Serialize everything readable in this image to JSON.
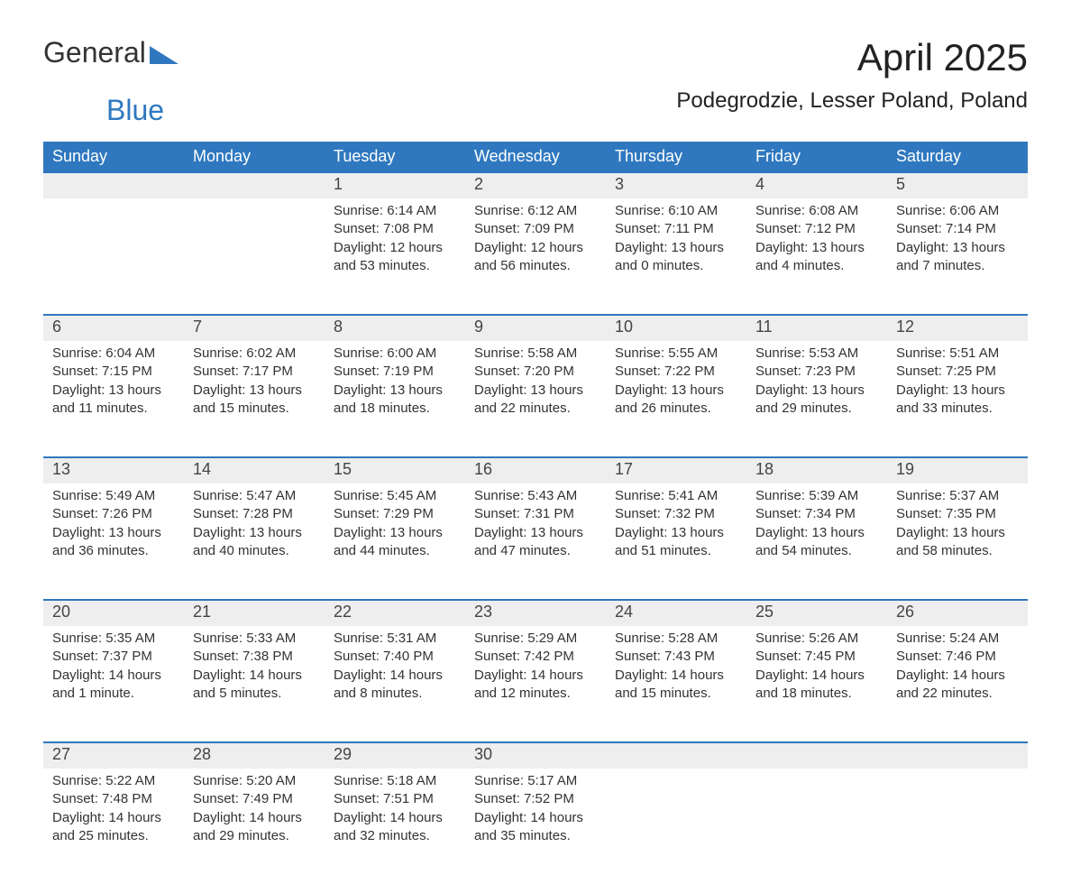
{
  "logo": {
    "part1": "General",
    "part2": "Blue"
  },
  "title": "April 2025",
  "location": "Podegrodzie, Lesser Poland, Poland",
  "weekdays": [
    "Sunday",
    "Monday",
    "Tuesday",
    "Wednesday",
    "Thursday",
    "Friday",
    "Saturday"
  ],
  "colors": {
    "header_bg": "#2f78bf",
    "header_text": "#ffffff",
    "daynum_bg": "#eeeeee",
    "daynum_border": "#2f78bf",
    "body_text": "#333333",
    "page_bg": "#ffffff",
    "logo_accent": "#2f78bf"
  },
  "weeks": [
    [
      null,
      null,
      {
        "day": "1",
        "sunrise": "Sunrise: 6:14 AM",
        "sunset": "Sunset: 7:08 PM",
        "daylight1": "Daylight: 12 hours",
        "daylight2": "and 53 minutes."
      },
      {
        "day": "2",
        "sunrise": "Sunrise: 6:12 AM",
        "sunset": "Sunset: 7:09 PM",
        "daylight1": "Daylight: 12 hours",
        "daylight2": "and 56 minutes."
      },
      {
        "day": "3",
        "sunrise": "Sunrise: 6:10 AM",
        "sunset": "Sunset: 7:11 PM",
        "daylight1": "Daylight: 13 hours",
        "daylight2": "and 0 minutes."
      },
      {
        "day": "4",
        "sunrise": "Sunrise: 6:08 AM",
        "sunset": "Sunset: 7:12 PM",
        "daylight1": "Daylight: 13 hours",
        "daylight2": "and 4 minutes."
      },
      {
        "day": "5",
        "sunrise": "Sunrise: 6:06 AM",
        "sunset": "Sunset: 7:14 PM",
        "daylight1": "Daylight: 13 hours",
        "daylight2": "and 7 minutes."
      }
    ],
    [
      {
        "day": "6",
        "sunrise": "Sunrise: 6:04 AM",
        "sunset": "Sunset: 7:15 PM",
        "daylight1": "Daylight: 13 hours",
        "daylight2": "and 11 minutes."
      },
      {
        "day": "7",
        "sunrise": "Sunrise: 6:02 AM",
        "sunset": "Sunset: 7:17 PM",
        "daylight1": "Daylight: 13 hours",
        "daylight2": "and 15 minutes."
      },
      {
        "day": "8",
        "sunrise": "Sunrise: 6:00 AM",
        "sunset": "Sunset: 7:19 PM",
        "daylight1": "Daylight: 13 hours",
        "daylight2": "and 18 minutes."
      },
      {
        "day": "9",
        "sunrise": "Sunrise: 5:58 AM",
        "sunset": "Sunset: 7:20 PM",
        "daylight1": "Daylight: 13 hours",
        "daylight2": "and 22 minutes."
      },
      {
        "day": "10",
        "sunrise": "Sunrise: 5:55 AM",
        "sunset": "Sunset: 7:22 PM",
        "daylight1": "Daylight: 13 hours",
        "daylight2": "and 26 minutes."
      },
      {
        "day": "11",
        "sunrise": "Sunrise: 5:53 AM",
        "sunset": "Sunset: 7:23 PM",
        "daylight1": "Daylight: 13 hours",
        "daylight2": "and 29 minutes."
      },
      {
        "day": "12",
        "sunrise": "Sunrise: 5:51 AM",
        "sunset": "Sunset: 7:25 PM",
        "daylight1": "Daylight: 13 hours",
        "daylight2": "and 33 minutes."
      }
    ],
    [
      {
        "day": "13",
        "sunrise": "Sunrise: 5:49 AM",
        "sunset": "Sunset: 7:26 PM",
        "daylight1": "Daylight: 13 hours",
        "daylight2": "and 36 minutes."
      },
      {
        "day": "14",
        "sunrise": "Sunrise: 5:47 AM",
        "sunset": "Sunset: 7:28 PM",
        "daylight1": "Daylight: 13 hours",
        "daylight2": "and 40 minutes."
      },
      {
        "day": "15",
        "sunrise": "Sunrise: 5:45 AM",
        "sunset": "Sunset: 7:29 PM",
        "daylight1": "Daylight: 13 hours",
        "daylight2": "and 44 minutes."
      },
      {
        "day": "16",
        "sunrise": "Sunrise: 5:43 AM",
        "sunset": "Sunset: 7:31 PM",
        "daylight1": "Daylight: 13 hours",
        "daylight2": "and 47 minutes."
      },
      {
        "day": "17",
        "sunrise": "Sunrise: 5:41 AM",
        "sunset": "Sunset: 7:32 PM",
        "daylight1": "Daylight: 13 hours",
        "daylight2": "and 51 minutes."
      },
      {
        "day": "18",
        "sunrise": "Sunrise: 5:39 AM",
        "sunset": "Sunset: 7:34 PM",
        "daylight1": "Daylight: 13 hours",
        "daylight2": "and 54 minutes."
      },
      {
        "day": "19",
        "sunrise": "Sunrise: 5:37 AM",
        "sunset": "Sunset: 7:35 PM",
        "daylight1": "Daylight: 13 hours",
        "daylight2": "and 58 minutes."
      }
    ],
    [
      {
        "day": "20",
        "sunrise": "Sunrise: 5:35 AM",
        "sunset": "Sunset: 7:37 PM",
        "daylight1": "Daylight: 14 hours",
        "daylight2": "and 1 minute."
      },
      {
        "day": "21",
        "sunrise": "Sunrise: 5:33 AM",
        "sunset": "Sunset: 7:38 PM",
        "daylight1": "Daylight: 14 hours",
        "daylight2": "and 5 minutes."
      },
      {
        "day": "22",
        "sunrise": "Sunrise: 5:31 AM",
        "sunset": "Sunset: 7:40 PM",
        "daylight1": "Daylight: 14 hours",
        "daylight2": "and 8 minutes."
      },
      {
        "day": "23",
        "sunrise": "Sunrise: 5:29 AM",
        "sunset": "Sunset: 7:42 PM",
        "daylight1": "Daylight: 14 hours",
        "daylight2": "and 12 minutes."
      },
      {
        "day": "24",
        "sunrise": "Sunrise: 5:28 AM",
        "sunset": "Sunset: 7:43 PM",
        "daylight1": "Daylight: 14 hours",
        "daylight2": "and 15 minutes."
      },
      {
        "day": "25",
        "sunrise": "Sunrise: 5:26 AM",
        "sunset": "Sunset: 7:45 PM",
        "daylight1": "Daylight: 14 hours",
        "daylight2": "and 18 minutes."
      },
      {
        "day": "26",
        "sunrise": "Sunrise: 5:24 AM",
        "sunset": "Sunset: 7:46 PM",
        "daylight1": "Daylight: 14 hours",
        "daylight2": "and 22 minutes."
      }
    ],
    [
      {
        "day": "27",
        "sunrise": "Sunrise: 5:22 AM",
        "sunset": "Sunset: 7:48 PM",
        "daylight1": "Daylight: 14 hours",
        "daylight2": "and 25 minutes."
      },
      {
        "day": "28",
        "sunrise": "Sunrise: 5:20 AM",
        "sunset": "Sunset: 7:49 PM",
        "daylight1": "Daylight: 14 hours",
        "daylight2": "and 29 minutes."
      },
      {
        "day": "29",
        "sunrise": "Sunrise: 5:18 AM",
        "sunset": "Sunset: 7:51 PM",
        "daylight1": "Daylight: 14 hours",
        "daylight2": "and 32 minutes."
      },
      {
        "day": "30",
        "sunrise": "Sunrise: 5:17 AM",
        "sunset": "Sunset: 7:52 PM",
        "daylight1": "Daylight: 14 hours",
        "daylight2": "and 35 minutes."
      },
      null,
      null,
      null
    ]
  ]
}
